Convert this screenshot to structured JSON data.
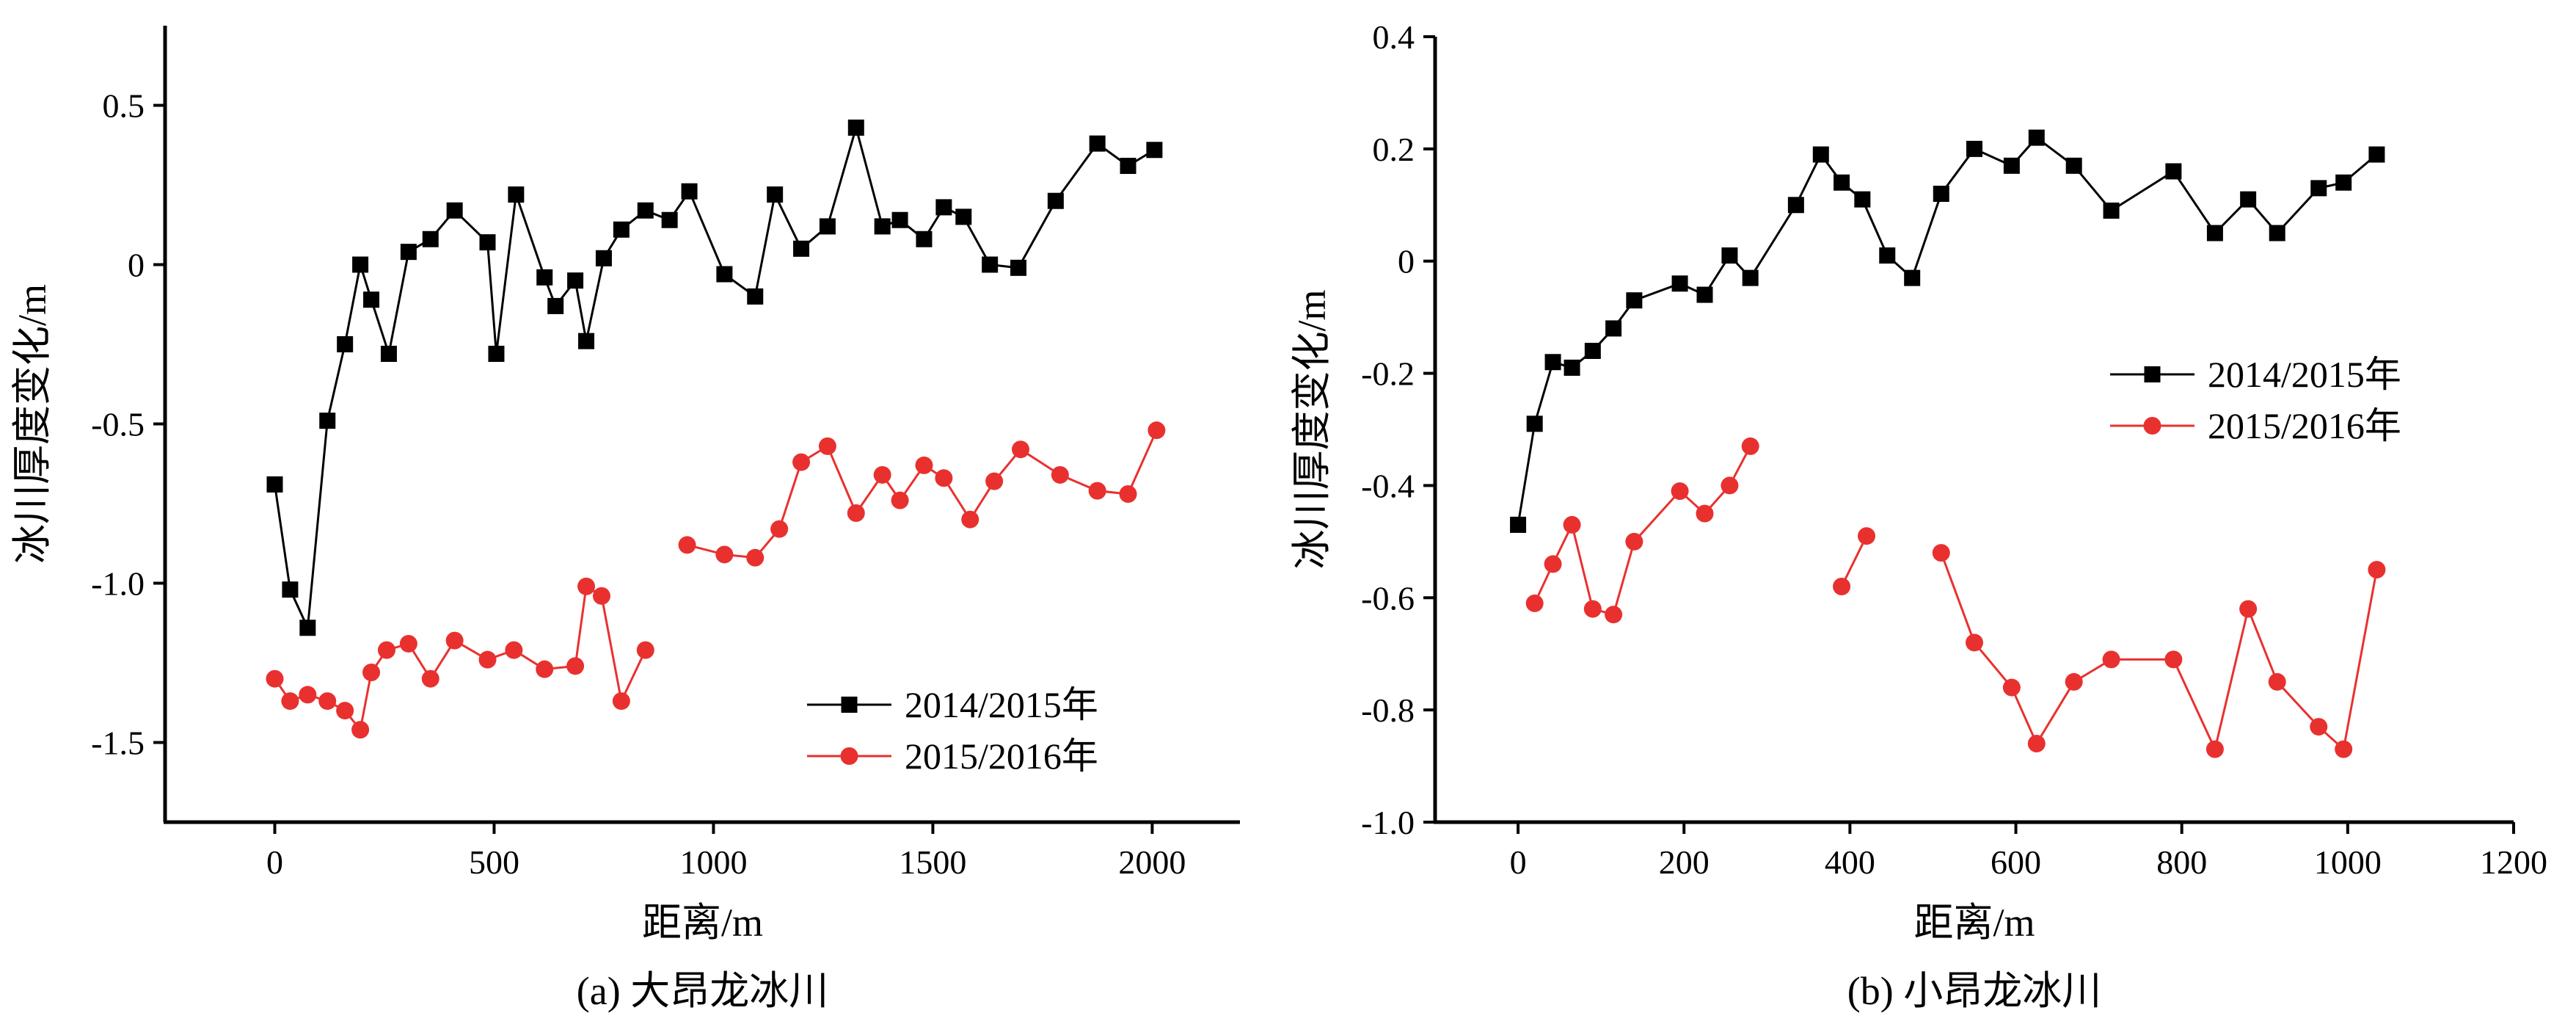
{
  "chart_data": [
    {
      "type": "line",
      "caption": "(a) 大昂龙冰川",
      "xlabel": "距离/m",
      "ylabel": "冰川厚度变化/m",
      "xlim": [
        -250,
        2200
      ],
      "ylim": [
        -1.75,
        0.75
      ],
      "xticks": [
        0,
        500,
        1000,
        1500,
        2000
      ],
      "xtick_labels": [
        "0",
        "500",
        "1000",
        "1500",
        "2000"
      ],
      "yticks": [
        0.5,
        0,
        -0.5,
        -1.0,
        -1.5
      ],
      "ytick_labels": [
        "0.5",
        "0",
        "-0.5",
        "-1.0",
        "-1.5"
      ],
      "legend_position": "bottom-right",
      "series": [
        {
          "name": "2014/2015年",
          "color": "#000000",
          "marker": "square",
          "segments": [
            [
              [
                0,
                -0.69
              ],
              [
                35,
                -1.02
              ],
              [
                75,
                -1.14
              ],
              [
                120,
                -0.49
              ],
              [
                160,
                -0.25
              ],
              [
                195,
                0.0
              ],
              [
                220,
                -0.11
              ],
              [
                260,
                -0.28
              ],
              [
                305,
                0.04
              ],
              [
                355,
                0.08
              ],
              [
                410,
                0.17
              ],
              [
                485,
                0.07
              ],
              [
                505,
                -0.28
              ],
              [
                550,
                0.22
              ],
              [
                615,
                -0.04
              ],
              [
                640,
                -0.13
              ],
              [
                685,
                -0.05
              ],
              [
                710,
                -0.24
              ],
              [
                750,
                0.02
              ],
              [
                790,
                0.11
              ],
              [
                845,
                0.17
              ],
              [
                900,
                0.14
              ],
              [
                945,
                0.23
              ],
              [
                1025,
                -0.03
              ],
              [
                1095,
                -0.1
              ],
              [
                1140,
                0.22
              ],
              [
                1200,
                0.05
              ],
              [
                1260,
                0.12
              ],
              [
                1325,
                0.43
              ],
              [
                1385,
                0.12
              ],
              [
                1425,
                0.14
              ],
              [
                1480,
                0.08
              ],
              [
                1525,
                0.18
              ],
              [
                1570,
                0.15
              ],
              [
                1630,
                0.0
              ],
              [
                1695,
                -0.01
              ],
              [
                1780,
                0.2
              ],
              [
                1875,
                0.38
              ],
              [
                1945,
                0.31
              ],
              [
                2005,
                0.36
              ]
            ]
          ]
        },
        {
          "name": "2015/2016年",
          "color": "#e8312f",
          "marker": "circle",
          "segments": [
            [
              [
                0,
                -1.3
              ],
              [
                35,
                -1.37
              ],
              [
                75,
                -1.35
              ],
              [
                120,
                -1.37
              ],
              [
                160,
                -1.4
              ],
              [
                195,
                -1.46
              ],
              [
                220,
                -1.28
              ],
              [
                255,
                -1.21
              ],
              [
                305,
                -1.19
              ],
              [
                355,
                -1.3
              ],
              [
                410,
                -1.18
              ],
              [
                485,
                -1.24
              ],
              [
                545,
                -1.21
              ],
              [
                615,
                -1.27
              ],
              [
                685,
                -1.26
              ],
              [
                710,
                -1.01
              ],
              [
                745,
                -1.04
              ],
              [
                790,
                -1.37
              ],
              [
                845,
                -1.21
              ]
            ],
            [
              [
                940,
                -0.88
              ],
              [
                1025,
                -0.91
              ],
              [
                1095,
                -0.92
              ],
              [
                1150,
                -0.83
              ],
              [
                1200,
                -0.62
              ],
              [
                1260,
                -0.57
              ],
              [
                1325,
                -0.78
              ],
              [
                1385,
                -0.66
              ],
              [
                1425,
                -0.74
              ],
              [
                1480,
                -0.63
              ],
              [
                1525,
                -0.67
              ],
              [
                1585,
                -0.8
              ],
              [
                1640,
                -0.68
              ],
              [
                1700,
                -0.58
              ],
              [
                1790,
                -0.66
              ],
              [
                1875,
                -0.71
              ],
              [
                1945,
                -0.72
              ],
              [
                2010,
                -0.52
              ]
            ]
          ]
        }
      ]
    },
    {
      "type": "line",
      "caption": "(b) 小昂龙冰川",
      "xlabel": "距离/m",
      "ylabel": "冰川厚度变化/m",
      "xlim": [
        -100,
        1200
      ],
      "ylim": [
        -1.0,
        0.4
      ],
      "xticks": [
        0,
        200,
        400,
        600,
        800,
        1000,
        1200
      ],
      "xtick_labels": [
        "0",
        "200",
        "400",
        "600",
        "800",
        "1000",
        "1200"
      ],
      "yticks": [
        0.4,
        0.2,
        0,
        -0.2,
        -0.4,
        -0.6,
        -0.8,
        -1.0
      ],
      "ytick_labels": [
        "0.4",
        "0.2",
        "0",
        "-0.2",
        "-0.4",
        "-0.6",
        "-0.8",
        "-1.0"
      ],
      "legend_position": "top-right",
      "series": [
        {
          "name": "2014/2015年",
          "color": "#000000",
          "marker": "square",
          "segments": [
            [
              [
                0,
                -0.47
              ],
              [
                20,
                -0.29
              ],
              [
                42,
                -0.18
              ],
              [
                65,
                -0.19
              ],
              [
                90,
                -0.16
              ],
              [
                115,
                -0.12
              ],
              [
                140,
                -0.07
              ],
              [
                195,
                -0.04
              ],
              [
                225,
                -0.06
              ],
              [
                255,
                0.01
              ],
              [
                280,
                -0.03
              ],
              [
                335,
                0.1
              ],
              [
                365,
                0.19
              ],
              [
                390,
                0.14
              ],
              [
                415,
                0.11
              ],
              [
                445,
                0.01
              ],
              [
                475,
                -0.03
              ],
              [
                510,
                0.12
              ],
              [
                550,
                0.2
              ],
              [
                595,
                0.17
              ],
              [
                625,
                0.22
              ],
              [
                670,
                0.17
              ],
              [
                715,
                0.09
              ],
              [
                790,
                0.16
              ],
              [
                840,
                0.05
              ],
              [
                880,
                0.11
              ],
              [
                915,
                0.05
              ],
              [
                965,
                0.13
              ],
              [
                995,
                0.14
              ],
              [
                1035,
                0.19
              ]
            ]
          ]
        },
        {
          "name": "2015/2016年",
          "color": "#e8312f",
          "marker": "circle",
          "segments": [
            [
              [
                20,
                -0.61
              ],
              [
                42,
                -0.54
              ],
              [
                65,
                -0.47
              ],
              [
                90,
                -0.62
              ],
              [
                115,
                -0.63
              ],
              [
                140,
                -0.5
              ],
              [
                195,
                -0.41
              ],
              [
                225,
                -0.45
              ],
              [
                255,
                -0.4
              ],
              [
                280,
                -0.33
              ]
            ],
            [
              [
                390,
                -0.58
              ],
              [
                420,
                -0.49
              ]
            ],
            [
              [
                510,
                -0.52
              ],
              [
                550,
                -0.68
              ],
              [
                595,
                -0.76
              ],
              [
                625,
                -0.86
              ],
              [
                670,
                -0.75
              ],
              [
                715,
                -0.71
              ],
              [
                790,
                -0.71
              ],
              [
                840,
                -0.87
              ],
              [
                880,
                -0.62
              ],
              [
                915,
                -0.75
              ],
              [
                965,
                -0.83
              ],
              [
                995,
                -0.87
              ],
              [
                1035,
                -0.55
              ]
            ]
          ]
        }
      ]
    }
  ]
}
